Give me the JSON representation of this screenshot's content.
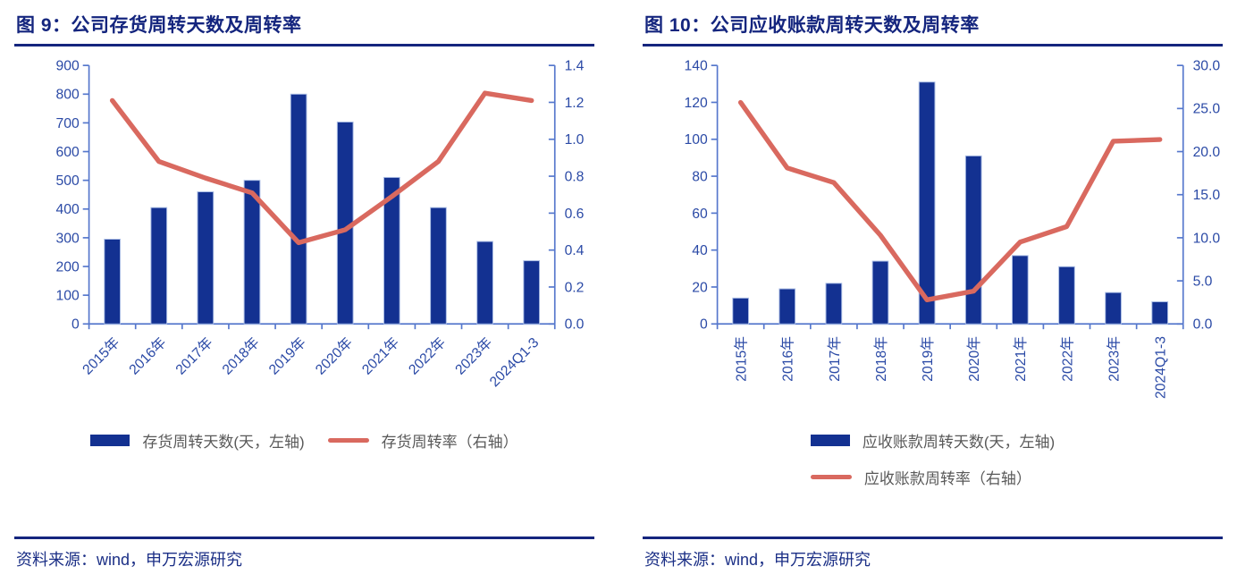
{
  "page": {
    "source_line": "资料来源：wind，申万宏源研究"
  },
  "colors": {
    "bar": "#133191",
    "bar_edge": "#A9BCE4",
    "line": "#D9695F",
    "axis": "#5577CC",
    "tick_label": "#2B4AA6",
    "title": "#14257E",
    "legend_text": "#595959"
  },
  "charts": [
    {
      "title": "图 9：公司存货周转天数及周转率"
    },
    {
      "title": "图 10：公司应收账款周转天数及周转率"
    }
  ],
  "chart_data": [
    {
      "type": "bar+line",
      "title": "图 9：公司存货周转天数及周转率",
      "categories": [
        "2015年",
        "2016年",
        "2017年",
        "2018年",
        "2019年",
        "2020年",
        "2021年",
        "2022年",
        "2023年",
        "2024Q1-3"
      ],
      "series": [
        {
          "name": "存货周转天数(天，左轴)",
          "type": "bar",
          "axis": "left",
          "values": [
            295,
            405,
            460,
            500,
            800,
            703,
            510,
            405,
            287,
            220
          ]
        },
        {
          "name": "存货周转率（右轴）",
          "type": "line",
          "axis": "right",
          "values": [
            1.21,
            0.88,
            0.79,
            0.71,
            0.44,
            0.51,
            0.69,
            0.88,
            1.25,
            1.21
          ]
        }
      ],
      "left_axis": {
        "min": 0,
        "max": 900,
        "step": 100,
        "labels": [
          "900",
          "800",
          "700",
          "600",
          "500",
          "400",
          "300",
          "200",
          "100",
          "0"
        ]
      },
      "right_axis": {
        "min": 0,
        "max": 1.4,
        "step": 0.2,
        "labels": [
          "1.4",
          "1.2",
          "1.0",
          "0.8",
          "0.6",
          "0.4",
          "0.2",
          "0.0"
        ]
      },
      "grid": false,
      "legend_position": "bottom",
      "x_label_rotation": -45
    },
    {
      "type": "bar+line",
      "title": "图 10：公司应收账款周转天数及周转率",
      "categories": [
        "2015年",
        "2016年",
        "2017年",
        "2018年",
        "2019年",
        "2020年",
        "2021年",
        "2022年",
        "2023年",
        "2024Q1-3"
      ],
      "series": [
        {
          "name": "应收账款周转天数(天，左轴)",
          "type": "bar",
          "axis": "left",
          "values": [
            14,
            19,
            22,
            34,
            131,
            91,
            37,
            31,
            17,
            12
          ]
        },
        {
          "name": "应收账款周转率（右轴）",
          "type": "line",
          "axis": "right",
          "values": [
            25.7,
            18.1,
            16.4,
            10.3,
            2.8,
            3.8,
            9.5,
            11.3,
            21.2,
            21.4
          ]
        }
      ],
      "left_axis": {
        "min": 0,
        "max": 140,
        "step": 20,
        "labels": [
          "140",
          "120",
          "100",
          "80",
          "60",
          "40",
          "20",
          "0"
        ]
      },
      "right_axis": {
        "min": 0,
        "max": 30,
        "step": 5,
        "labels": [
          "30.0",
          "25.0",
          "20.0",
          "15.0",
          "10.0",
          "5.0",
          "0.0"
        ]
      },
      "grid": false,
      "legend_position": "bottom",
      "x_label_rotation": -90
    }
  ]
}
